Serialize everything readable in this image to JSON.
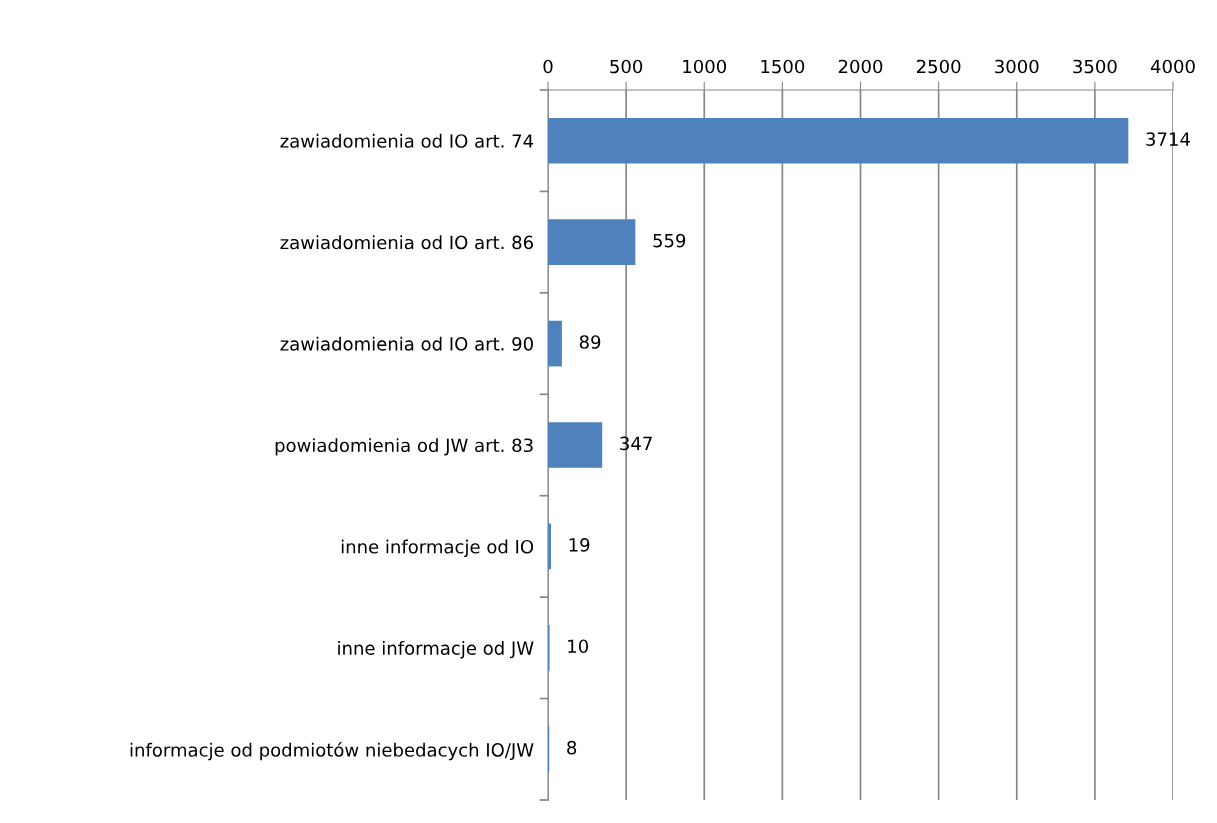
{
  "chart_data": {
    "type": "bar",
    "orientation": "horizontal",
    "categories": [
      "zawiadomienia od IO art. 74",
      "zawiadomienia od IO art. 86",
      "zawiadomienia od IO art. 90",
      "powiadomienia od JW art. 83",
      "inne informacje od IO",
      "inne informacje od JW",
      "informacje od podmiotów niebedacych IO/JW"
    ],
    "values": [
      3714,
      559,
      89,
      347,
      19,
      10,
      8
    ],
    "color": "#4f81bd",
    "xlim": [
      0,
      4000
    ],
    "xticks": [
      0,
      500,
      1000,
      1500,
      2000,
      2500,
      3000,
      3500,
      4000
    ],
    "grid": "x",
    "data_labels": true
  }
}
